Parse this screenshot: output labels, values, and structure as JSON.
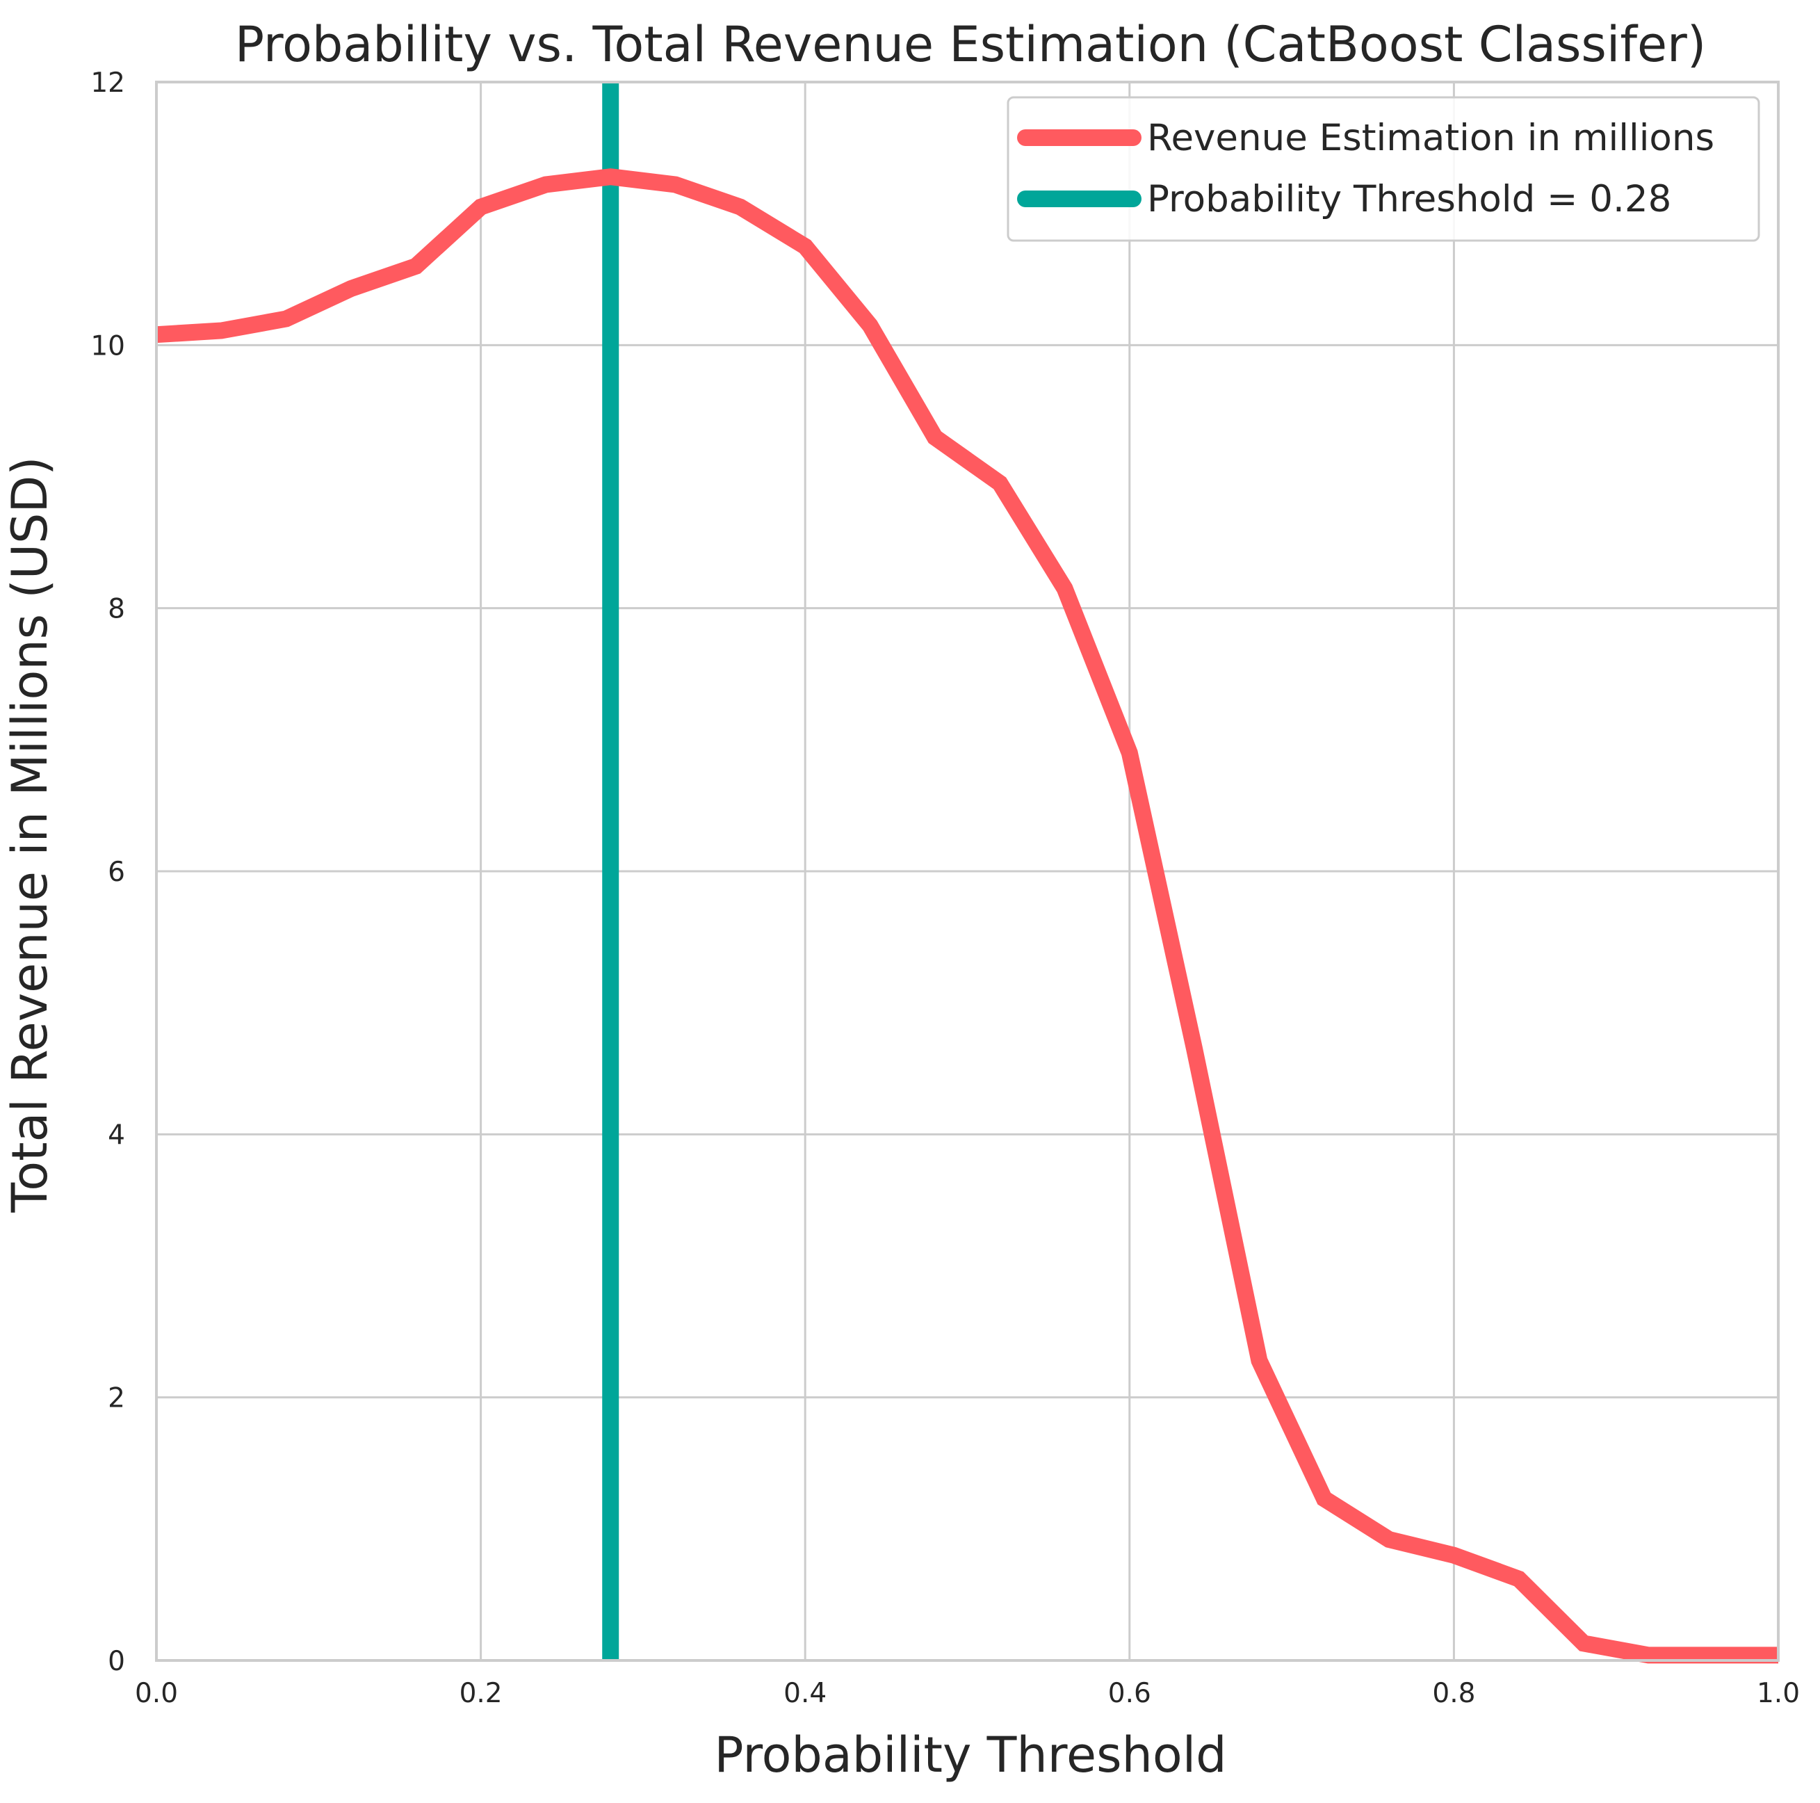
{
  "chart_data": {
    "type": "line",
    "title": "Probability vs. Total Revenue Estimation (CatBoost Classifer)",
    "xlabel": "Probability Threshold",
    "ylabel": "Total Revenue in Millions (USD)",
    "xlim": [
      0,
      1
    ],
    "ylim": [
      0,
      12
    ],
    "xticks": [
      "0.0",
      "0.2",
      "0.4",
      "0.6",
      "0.8",
      "1.0"
    ],
    "yticks": [
      "0",
      "2",
      "4",
      "6",
      "8",
      "10",
      "12"
    ],
    "grid": true,
    "legend_position": "upper right",
    "series": [
      {
        "name": "Revenue Estimation in millions",
        "color": "#ff5a5f",
        "x": [
          0.0,
          0.04,
          0.08,
          0.12,
          0.16,
          0.2,
          0.24,
          0.28,
          0.32,
          0.36,
          0.4,
          0.44,
          0.48,
          0.52,
          0.56,
          0.6,
          0.64,
          0.68,
          0.72,
          0.76,
          0.8,
          0.84,
          0.88,
          0.92,
          0.96,
          1.0
        ],
        "y": [
          10.08,
          10.11,
          10.2,
          10.43,
          10.6,
          11.05,
          11.22,
          11.28,
          11.22,
          11.05,
          10.75,
          10.15,
          9.3,
          8.95,
          8.15,
          6.9,
          4.65,
          2.28,
          1.23,
          0.92,
          0.8,
          0.62,
          0.13,
          0.04,
          0.04,
          0.04
        ]
      },
      {
        "name": "Probability Threshold = 0.28",
        "color": "#00a699",
        "type": "vline",
        "x": 0.28
      }
    ]
  }
}
